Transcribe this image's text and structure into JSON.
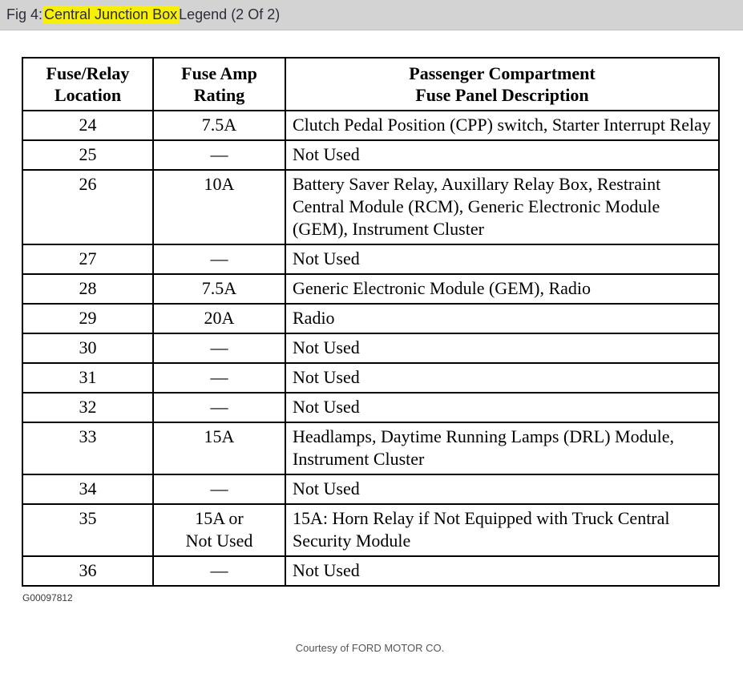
{
  "page": {
    "title_prefix": "Fig 4: ",
    "title_highlight": "Central Junction Box",
    "title_suffix": " Legend (2 Of 2)"
  },
  "colors": {
    "title_bar_bg": "#d3d3d3",
    "highlight_yellow": "#f7ef05",
    "table_border": "#000000"
  },
  "table": {
    "columns": [
      "Fuse/Relay\nLocation",
      "Fuse Amp\nRating",
      "Passenger Compartment\nFuse Panel Description"
    ],
    "rows": [
      {
        "location": "24",
        "rating": "7.5A",
        "description": "Clutch Pedal Position (CPP) switch, Starter Interrupt Relay"
      },
      {
        "location": "25",
        "rating": "—",
        "description": "Not Used"
      },
      {
        "location": "26",
        "rating": "10A",
        "description": "Battery Saver Relay, Auxillary Relay Box, Restraint Central Module (RCM), Generic Electronic Module (GEM), Instrument Cluster"
      },
      {
        "location": "27",
        "rating": "—",
        "description": "Not Used"
      },
      {
        "location": "28",
        "rating": "7.5A",
        "description": "Generic Electronic Module (GEM), Radio"
      },
      {
        "location": "29",
        "rating": "20A",
        "description": "Radio"
      },
      {
        "location": "30",
        "rating": "—",
        "description": "Not Used"
      },
      {
        "location": "31",
        "rating": "—",
        "description": "Not Used"
      },
      {
        "location": "32",
        "rating": "—",
        "description": "Not Used"
      },
      {
        "location": "33",
        "rating": "15A",
        "description": "Headlamps, Daytime Running Lamps (DRL) Module, Instrument Cluster"
      },
      {
        "location": "34",
        "rating": "—",
        "description": "Not Used"
      },
      {
        "location": "35",
        "rating": "15A or\nNot Used",
        "description": "15A: Horn Relay if Not Equipped with Truck Central Security Module"
      },
      {
        "location": "36",
        "rating": "—",
        "description": "Not Used"
      }
    ]
  },
  "footer": {
    "figure_id": "G00097812",
    "courtesy": "Courtesy of FORD MOTOR CO."
  }
}
